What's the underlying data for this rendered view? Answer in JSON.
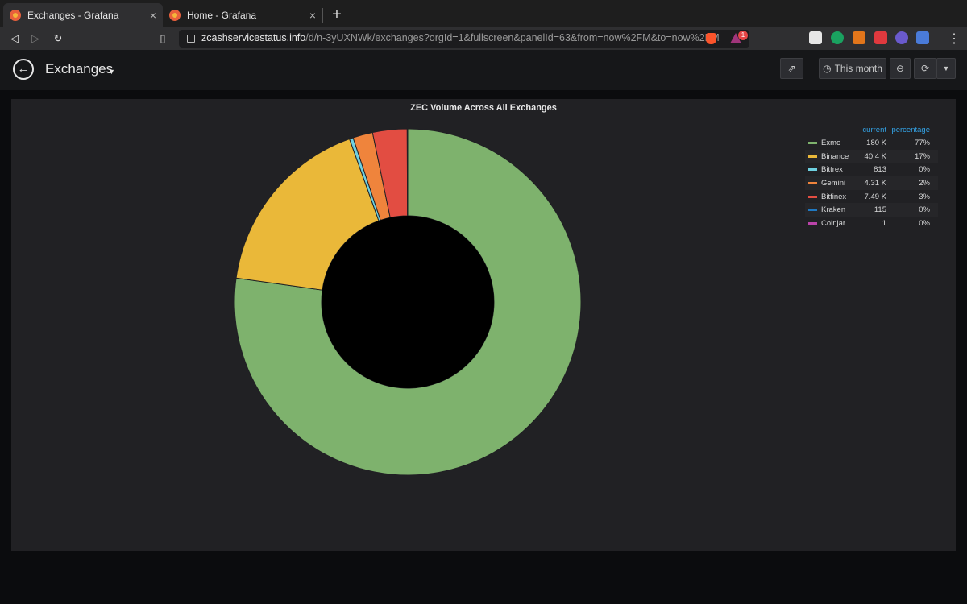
{
  "browser": {
    "tabs": [
      {
        "title": "Exchanges - Grafana",
        "active": true
      },
      {
        "title": "Home - Grafana",
        "active": false
      }
    ],
    "url_host": "zcashservicestatus.info",
    "url_path": "/d/n-3yUXNWk/exchanges?orgId=1&fullscreen&panelId=63&from=now%2FM&to=now%2FM",
    "badge_count": "1"
  },
  "dashboard": {
    "title": "Exchanges",
    "time_range": "This month"
  },
  "panel": {
    "title": "ZEC Volume Across All Exchanges",
    "legend_headers": {
      "current": "current",
      "percentage": "percentage"
    },
    "legend": [
      {
        "name": "Exmo",
        "current": "180 K",
        "percentage": "77%",
        "color": "#7eb26d"
      },
      {
        "name": "Binance",
        "current": "40.4 K",
        "percentage": "17%",
        "color": "#eab839"
      },
      {
        "name": "Bittrex",
        "current": "813",
        "percentage": "0%",
        "color": "#6ed0e0"
      },
      {
        "name": "Gemini",
        "current": "4.31 K",
        "percentage": "2%",
        "color": "#ef843c"
      },
      {
        "name": "Bitfinex",
        "current": "7.49 K",
        "percentage": "3%",
        "color": "#e24d42"
      },
      {
        "name": "Kraken",
        "current": "115",
        "percentage": "0%",
        "color": "#1f78c1"
      },
      {
        "name": "Coinjar",
        "current": "1",
        "percentage": "0%",
        "color": "#ba43a9"
      }
    ]
  },
  "chart_data": {
    "type": "pie",
    "title": "ZEC Volume Across All Exchanges",
    "labels": [
      "Exmo",
      "Binance",
      "Bittrex",
      "Gemini",
      "Bitfinex",
      "Kraken",
      "Coinjar"
    ],
    "values": [
      180000,
      40400,
      813,
      4310,
      7490,
      115,
      1
    ],
    "colors": [
      "#7eb26d",
      "#eab839",
      "#6ed0e0",
      "#ef843c",
      "#e24d42",
      "#1f78c1",
      "#ba43a9"
    ],
    "donut": true,
    "legend_position": "right"
  }
}
